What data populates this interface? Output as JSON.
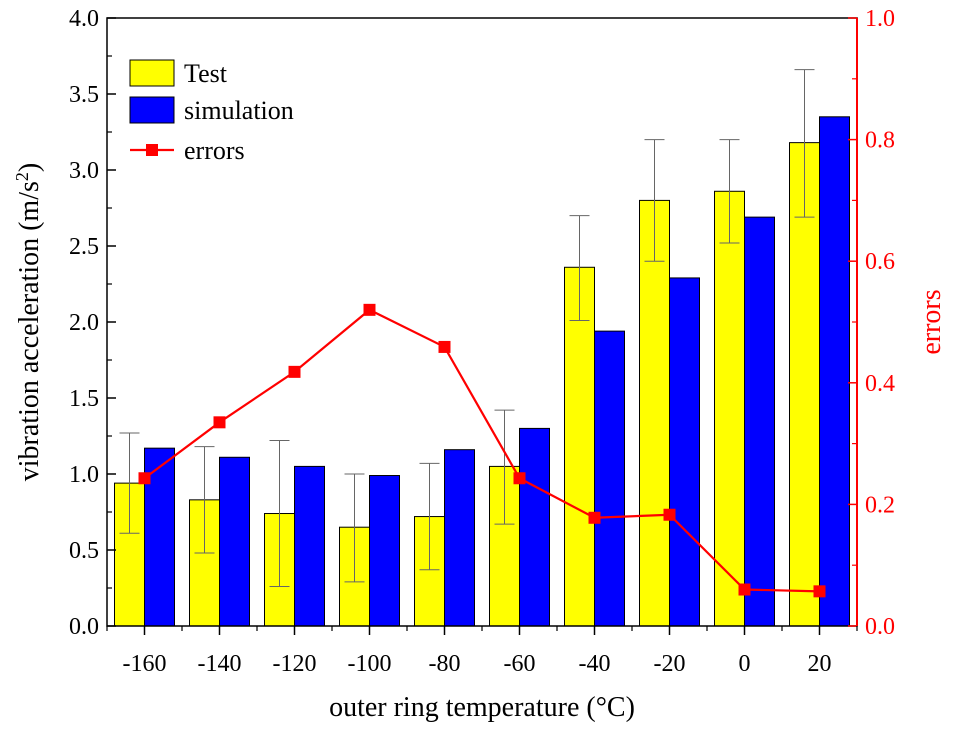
{
  "chart_data": {
    "type": "bar",
    "categories": [
      "-160",
      "-140",
      "-120",
      "-100",
      "-80",
      "-60",
      "-40",
      "-20",
      "0",
      "20"
    ],
    "x": [
      -160,
      -140,
      -120,
      -100,
      -80,
      -60,
      -40,
      -20,
      0,
      20
    ],
    "xlabel": "outer ring temperature (°C)",
    "ylabel": "vibration acceleration (m/s²)",
    "ylabel_main": "vibration acceleration (m/s",
    "ylabel_sup": "2",
    "ylabel_close": ")",
    "y2label": "errors",
    "ylim": [
      0.0,
      4.0
    ],
    "y2lim": [
      0.0,
      1.0
    ],
    "yticks": [
      "0.0",
      "0.5",
      "1.0",
      "1.5",
      "2.0",
      "2.5",
      "3.0",
      "3.5",
      "4.0"
    ],
    "y2ticks": [
      "0.0",
      "0.2",
      "0.4",
      "0.6",
      "0.8",
      "1.0"
    ],
    "legend_position": "top-left",
    "grid": false,
    "series": [
      {
        "name": "Test",
        "kind": "bar",
        "axis": "left",
        "color": "#ffff00",
        "values": [
          0.94,
          0.83,
          0.74,
          0.65,
          0.72,
          1.05,
          2.36,
          2.8,
          2.86,
          3.18
        ],
        "error_upper": [
          1.27,
          1.18,
          1.22,
          1.0,
          1.07,
          1.42,
          2.7,
          3.2,
          3.2,
          3.66
        ],
        "error_lower": [
          0.61,
          0.48,
          0.26,
          0.29,
          0.37,
          0.67,
          2.01,
          2.4,
          2.52,
          2.69
        ]
      },
      {
        "name": "simulation",
        "kind": "bar",
        "axis": "left",
        "color": "#0000ff",
        "values": [
          1.17,
          1.11,
          1.05,
          0.99,
          1.16,
          1.3,
          1.94,
          2.29,
          2.69,
          3.35
        ]
      },
      {
        "name": "errors",
        "kind": "line",
        "axis": "right",
        "color": "#ff0000",
        "values": [
          0.243,
          0.335,
          0.418,
          0.52,
          0.459,
          0.243,
          0.178,
          0.183,
          0.06,
          0.057
        ]
      }
    ]
  }
}
